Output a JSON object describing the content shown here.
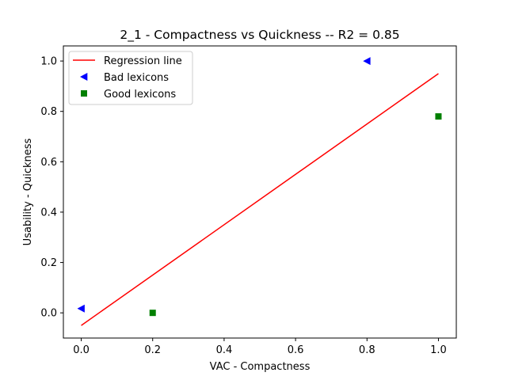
{
  "chart_data": {
    "type": "scatter",
    "title": "2_1 - Compactness  vs  Quickness -- R2 = 0.85",
    "xlabel": "VAC - Compactness",
    "ylabel": "Usability - Quickness",
    "xlim": [
      -0.05,
      1.05
    ],
    "ylim": [
      -0.1,
      1.06
    ],
    "xticks": [
      0.0,
      0.2,
      0.4,
      0.6,
      0.8,
      1.0
    ],
    "xtick_labels": [
      "0.0",
      "0.2",
      "0.4",
      "0.6",
      "0.8",
      "1.0"
    ],
    "yticks": [
      0.0,
      0.2,
      0.4,
      0.6,
      0.8,
      1.0
    ],
    "ytick_labels": [
      "0.0",
      "0.2",
      "0.4",
      "0.6",
      "0.8",
      "1.0"
    ],
    "grid": false,
    "legend_position": "top-left",
    "series": [
      {
        "name": "Regression line",
        "kind": "line",
        "color": "#ff0000",
        "points": [
          [
            0.0,
            -0.05
          ],
          [
            1.0,
            0.95
          ]
        ]
      },
      {
        "name": "Bad lexicons",
        "kind": "scatter",
        "marker": "triangle-left",
        "color": "#0000ff",
        "points": [
          [
            0.0,
            0.017
          ],
          [
            0.8,
            1.0
          ]
        ]
      },
      {
        "name": "Good lexicons",
        "kind": "scatter",
        "marker": "square",
        "color": "#008000",
        "points": [
          [
            0.2,
            0.0
          ],
          [
            1.0,
            0.78
          ]
        ]
      }
    ]
  }
}
